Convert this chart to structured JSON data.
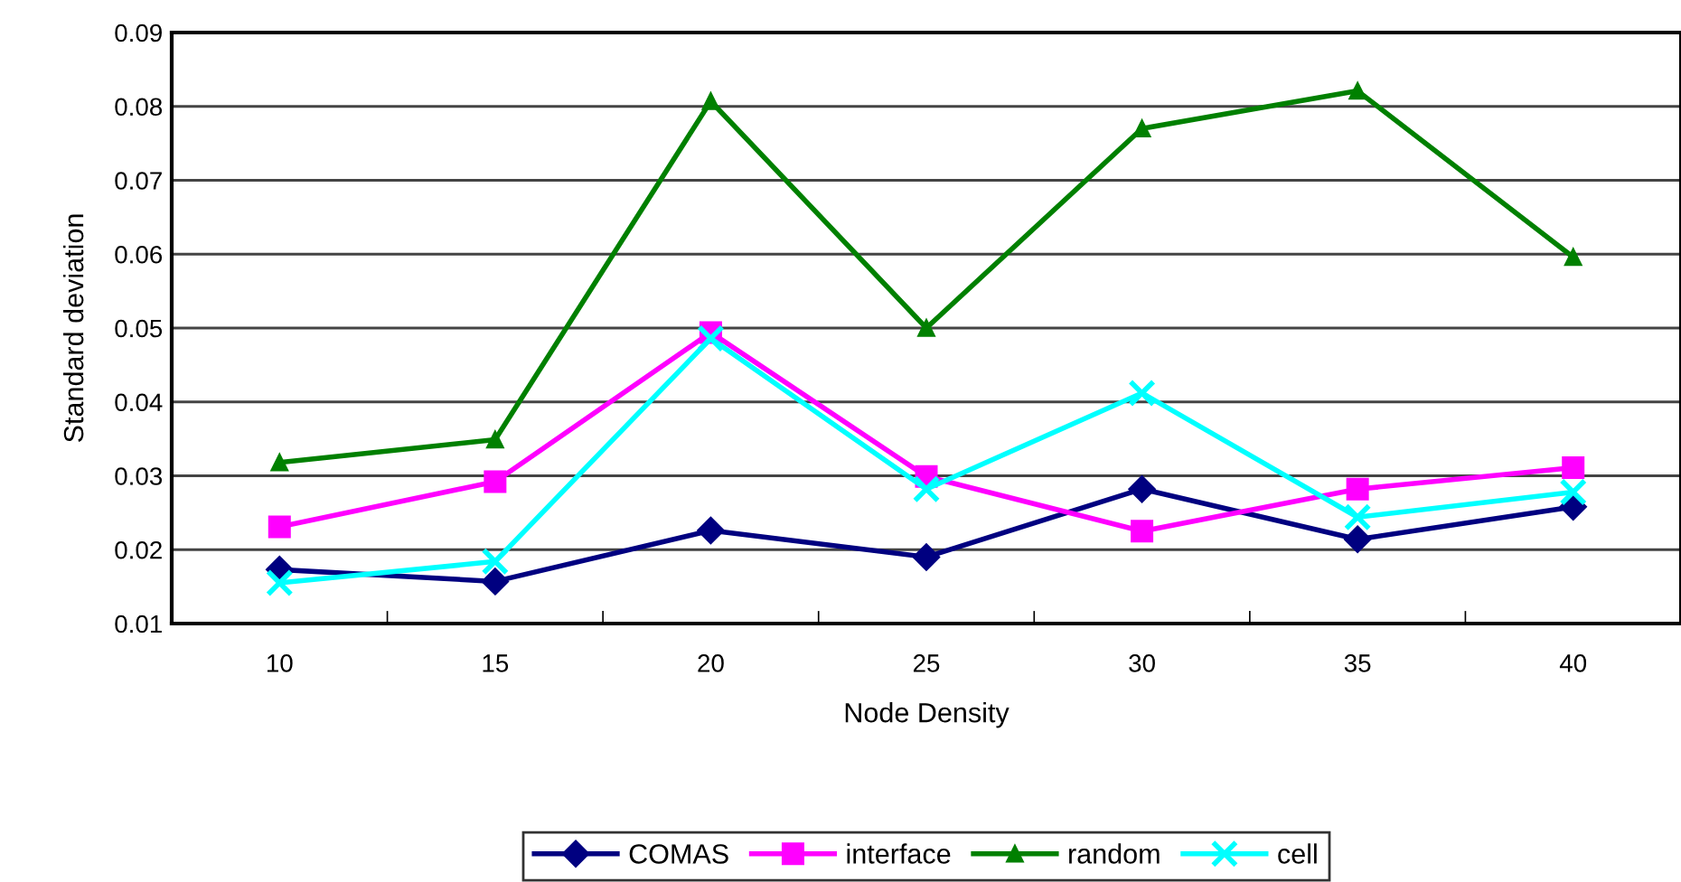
{
  "chart_data": {
    "type": "line",
    "xlabel": "Node Density",
    "ylabel": "Standard deviation",
    "categories": [
      "10",
      "15",
      "20",
      "25",
      "30",
      "35",
      "40"
    ],
    "series": [
      {
        "name": "COMAS",
        "color": "#000080",
        "marker": "diamond",
        "values": [
          0.0173,
          0.0157,
          0.0226,
          0.019,
          0.0282,
          0.0214,
          0.0258
        ]
      },
      {
        "name": "interface",
        "color": "#ff00ff",
        "marker": "square",
        "values": [
          0.0231,
          0.0292,
          0.0494,
          0.0299,
          0.0225,
          0.0282,
          0.0311
        ]
      },
      {
        "name": "random",
        "color": "#008000",
        "marker": "triangle",
        "values": [
          0.0318,
          0.0349,
          0.0807,
          0.05,
          0.077,
          0.0821,
          0.0596
        ]
      },
      {
        "name": "cell",
        "color": "#00ffff",
        "marker": "cross",
        "values": [
          0.0155,
          0.0184,
          0.0486,
          0.0282,
          0.0412,
          0.0244,
          0.0278
        ]
      }
    ],
    "ylim": [
      0.01,
      0.09
    ],
    "yticks": [
      0.01,
      0.02,
      0.03,
      0.04,
      0.05,
      0.06,
      0.07,
      0.08,
      0.09
    ],
    "grid": "y",
    "legend": "bottom"
  }
}
